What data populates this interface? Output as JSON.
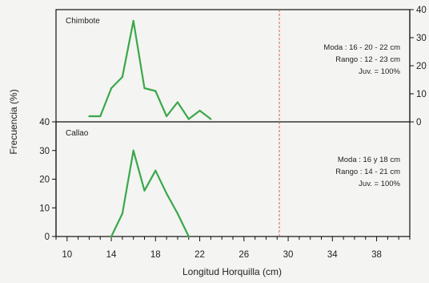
{
  "chart_data": {
    "type": "line",
    "xlabel": "Longitud Horquilla (cm)",
    "ylabel": "Frecuencia (%)",
    "xlim": [
      9,
      41
    ],
    "x_ticks": [
      10,
      14,
      18,
      22,
      26,
      30,
      34,
      38
    ],
    "x_minor_step": 1,
    "reference_line": {
      "x": 29.2,
      "color": "#e05a5a",
      "style": "dashed"
    },
    "line_color": "#3aa84a",
    "panels": [
      {
        "label": "Chimbote",
        "ylim": [
          0,
          40
        ],
        "y_ticks": [
          0,
          10,
          20,
          30,
          40
        ],
        "y_axis_side": "right",
        "annotations": [
          "Moda : 16 - 20 - 22 cm",
          "Rango : 12 - 23 cm",
          "Juv. = 100%"
        ],
        "x": [
          12,
          13,
          14,
          15,
          16,
          17,
          18,
          19,
          20,
          21,
          22,
          23
        ],
        "y": [
          2,
          2,
          12,
          16,
          36,
          12,
          11,
          2,
          7,
          1,
          4,
          1
        ]
      },
      {
        "label": "Callao",
        "ylim": [
          0,
          40
        ],
        "y_ticks": [
          0,
          10,
          20,
          30,
          40
        ],
        "y_axis_side": "left",
        "annotations": [
          "Moda : 16 y 18 cm",
          "Rango : 14 - 21 cm",
          "Juv. = 100%"
        ],
        "x": [
          14,
          15,
          16,
          17,
          18,
          19,
          20,
          21
        ],
        "y": [
          0,
          8,
          30,
          16,
          23,
          15,
          8,
          0
        ]
      }
    ]
  }
}
